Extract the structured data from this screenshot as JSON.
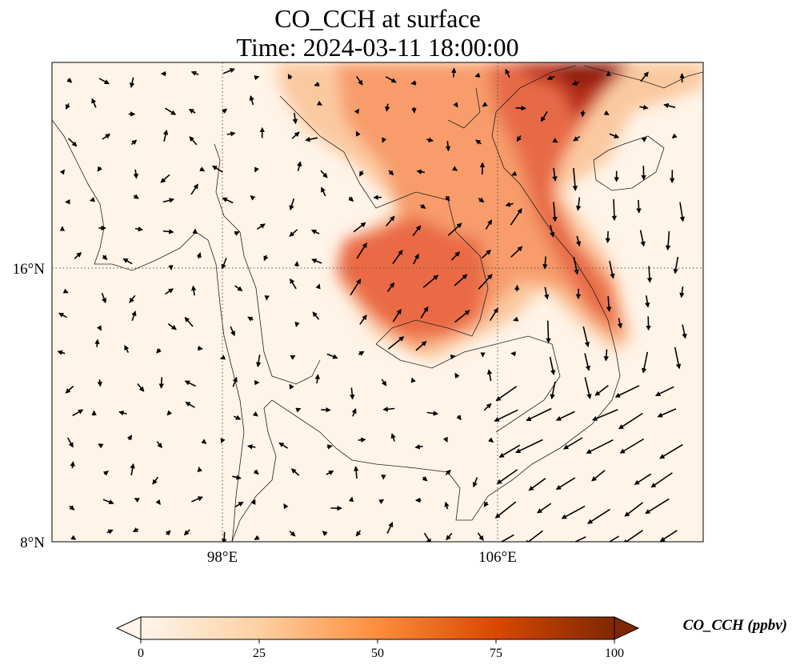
{
  "title": {
    "line1": "CO_CCH at surface",
    "line2": "Time: 2024-03-11 18:00:00"
  },
  "map": {
    "lon_ticks": [
      "98°E",
      "106°E"
    ],
    "lat_ticks": [
      "16°N",
      "8°N"
    ],
    "gridlines": "dotted",
    "vectors": "wind arrows"
  },
  "colorbar": {
    "label": "CO_CCH (ppbv)",
    "ticks": [
      "0",
      "25",
      "50",
      "75",
      "100"
    ],
    "min": 0,
    "max": 100,
    "extend": "both",
    "colormap": [
      "#fff5eb",
      "#fdd0a2",
      "#fd8d3c",
      "#d94801",
      "#7f2704"
    ]
  }
}
